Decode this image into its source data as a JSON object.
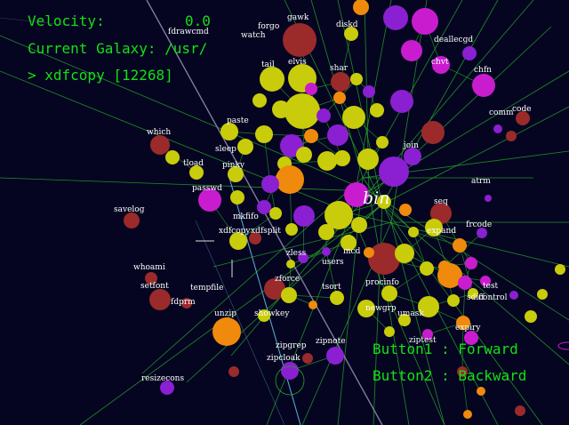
{
  "hud": {
    "velocity_label": "Velocity:",
    "velocity_value": "0.0",
    "galaxy_label": "Current Galaxy: /usr/",
    "command": "> xdfcopy [12268]",
    "help_forward": "Button1 : Forward",
    "help_backward": "Button2 : Backward"
  },
  "focus_label": "bin",
  "colors": {
    "background": "#050521",
    "hud_text": "#14e014",
    "edge": "#27a527",
    "trail": "#8a8aaa",
    "trail_cyan": "#5fb6d8",
    "node_red": "#9b2a2a",
    "node_yellow": "#c9cc0a",
    "node_magenta": "#c91ccf",
    "node_purple": "#8b1fd2",
    "node_orange": "#f08a0c",
    "label_text": "#ffffff"
  },
  "node_labels": [
    "forgo",
    "gawk",
    "diskd",
    "fdrawcmd",
    "watch",
    "tail",
    "elvis",
    "shar",
    "chvt",
    "deallecgd",
    "chfn",
    "which",
    "paste",
    "sleep",
    "pinky",
    "join",
    "code",
    "comm",
    "tload",
    "atrm",
    "passwd",
    "xdfcopy",
    "seq",
    "frcode",
    "savelog",
    "expand",
    "xdfsplit",
    "zless",
    "users",
    "whoami",
    "mcd",
    "setfont",
    "tempfile",
    "fdprm",
    "unzip",
    "showkey",
    "zipgrep",
    "zipnote",
    "zipcloak",
    "resizecons",
    "sdiff",
    "expiry",
    "test",
    "ziptest",
    "tsort",
    "procinfo",
    "control",
    "zforce",
    "mkfifo",
    "newgrp",
    "umask"
  ]
}
